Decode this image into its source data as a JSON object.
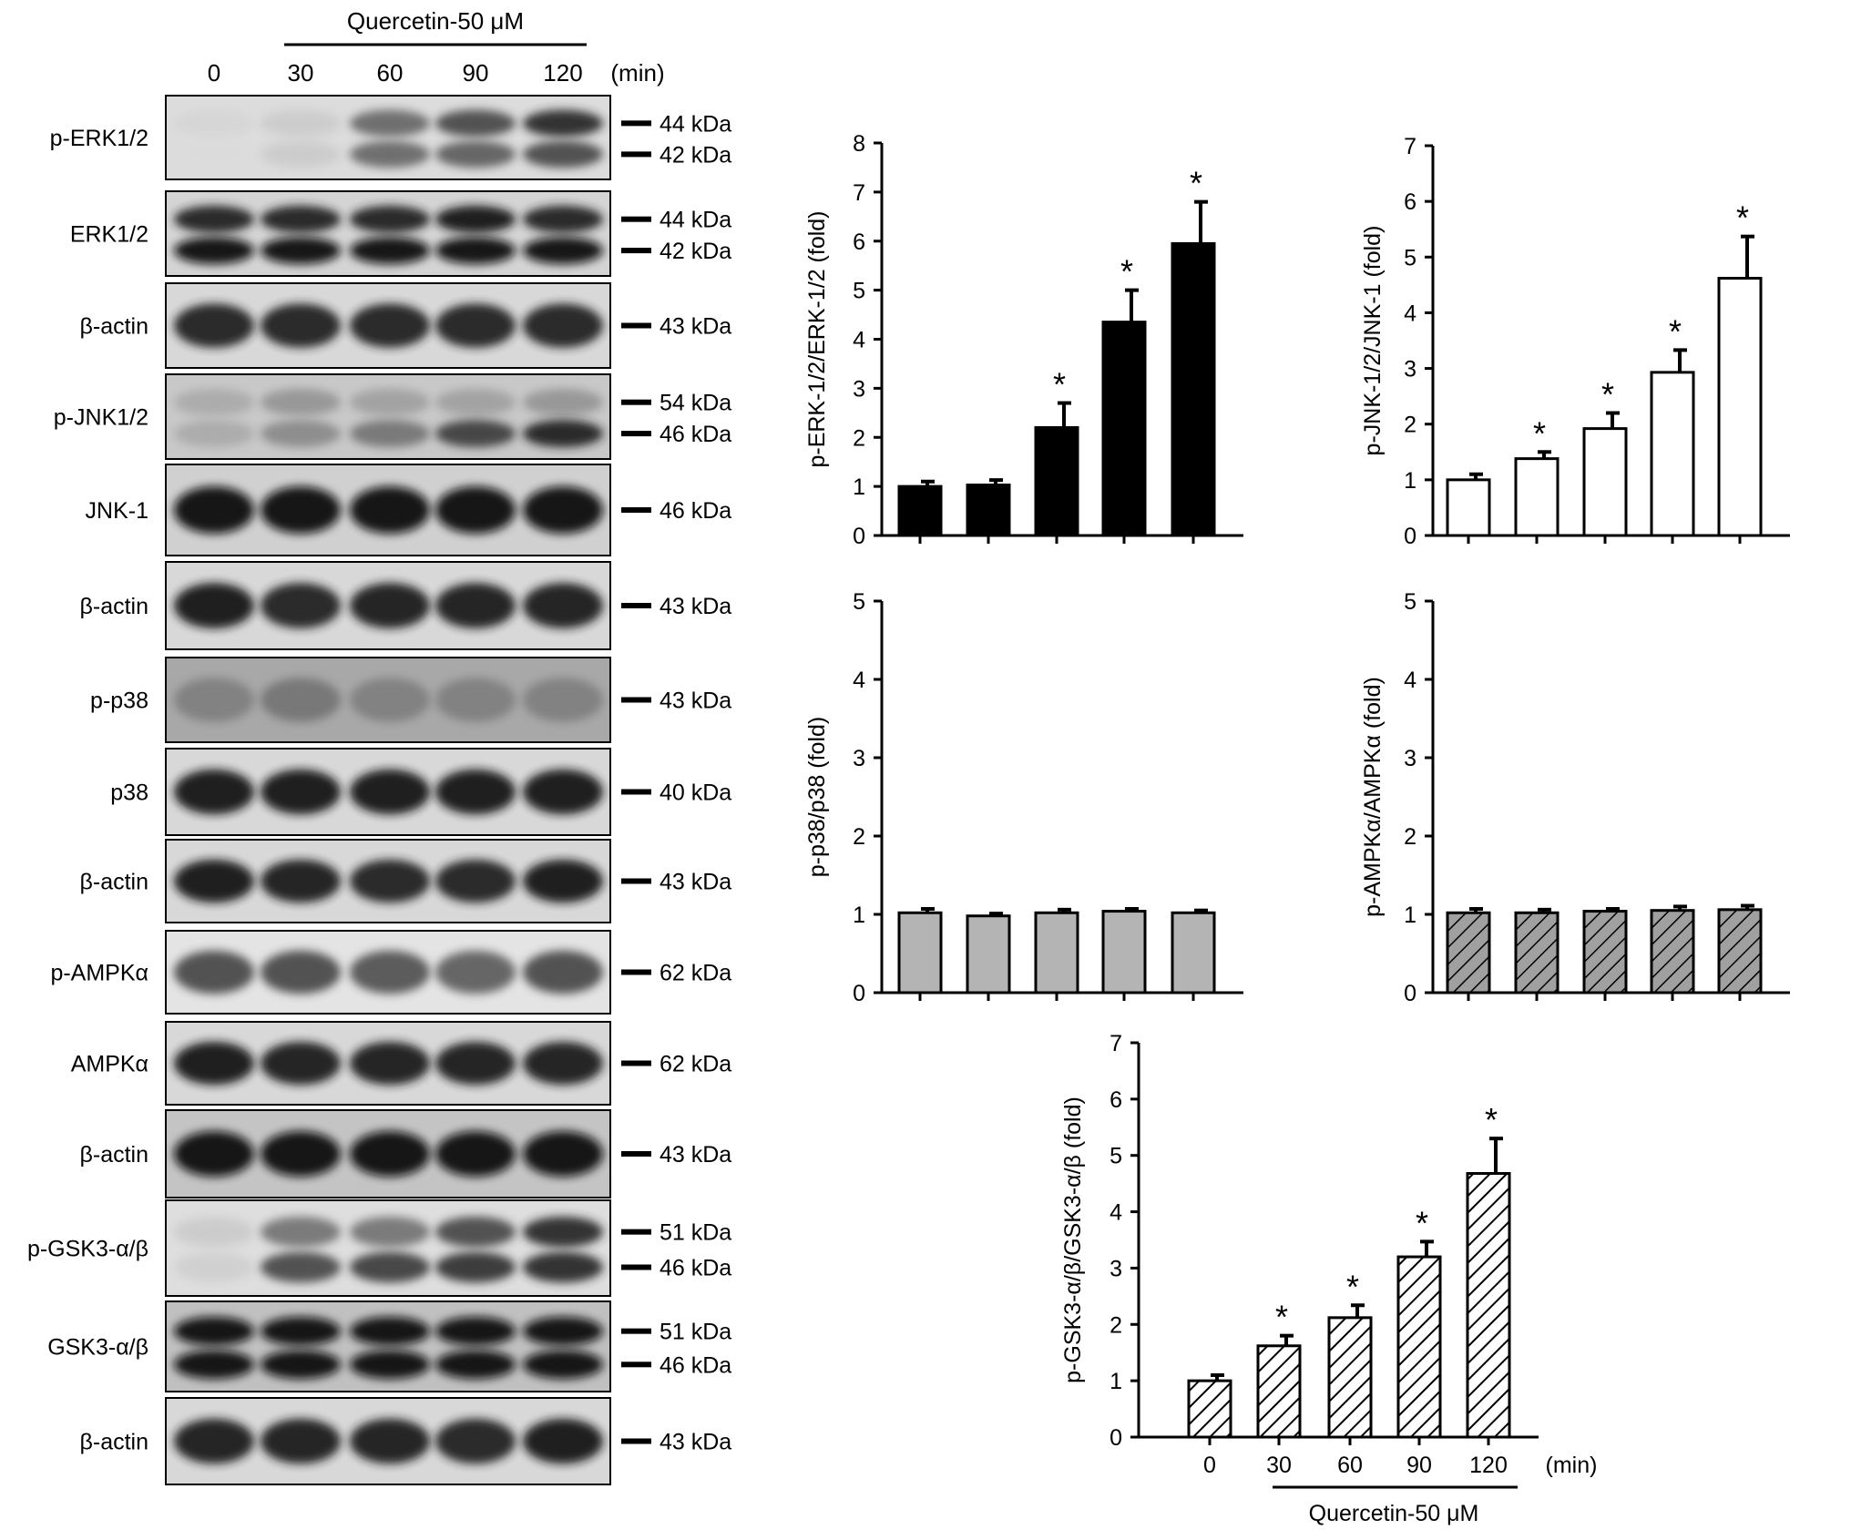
{
  "header": {
    "treatment": "Quercetin-50 μM",
    "times": [
      "0",
      "30",
      "60",
      "90",
      "120"
    ],
    "unit": "(min)"
  },
  "blots": [
    {
      "label": "p-ERK1/2",
      "markers": [
        "44 kDa",
        "42 kDa"
      ],
      "bands": [
        [
          0.05,
          0.1,
          0.55,
          0.7,
          0.85
        ],
        [
          0.03,
          0.1,
          0.55,
          0.6,
          0.7
        ]
      ],
      "bg": "#dcdcdc"
    },
    {
      "label": "ERK1/2",
      "markers": [
        "44 kDa",
        "42 kDa"
      ],
      "bands": [
        [
          0.9,
          0.9,
          0.9,
          0.95,
          0.9
        ],
        [
          1.0,
          1.0,
          1.0,
          1.0,
          1.0
        ]
      ],
      "bg": "#d4d4d4"
    },
    {
      "label": "β-actin",
      "markers": [
        "43 kDa"
      ],
      "bands": [
        [
          0.9,
          0.9,
          0.88,
          0.88,
          0.9
        ]
      ],
      "bg": "#d8d8d8"
    },
    {
      "label": "p-JNK1/2",
      "markers": [
        "54 kDa",
        "46 kDa"
      ],
      "bands": [
        [
          0.25,
          0.35,
          0.3,
          0.3,
          0.35
        ],
        [
          0.25,
          0.4,
          0.5,
          0.75,
          0.9
        ]
      ],
      "bg": "#c8c8c8"
    },
    {
      "label": "JNK-1",
      "markers": [
        "46 kDa"
      ],
      "bands": [
        [
          1.0,
          1.0,
          1.0,
          1.0,
          1.0
        ]
      ],
      "bg": "#d0d0d0"
    },
    {
      "label": "β-actin",
      "markers": [
        "43 kDa"
      ],
      "bands": [
        [
          0.95,
          0.9,
          0.92,
          0.92,
          0.92
        ]
      ],
      "bg": "#d8d8d8"
    },
    {
      "label": "p-p38",
      "markers": [
        "43 kDa"
      ],
      "bands": [
        [
          0.45,
          0.5,
          0.45,
          0.45,
          0.45
        ]
      ],
      "bg": "#a8a8a8"
    },
    {
      "label": "p38",
      "markers": [
        "40 kDa"
      ],
      "bands": [
        [
          0.95,
          0.95,
          0.95,
          0.95,
          0.95
        ]
      ],
      "bg": "#d8d8d8"
    },
    {
      "label": "β-actin",
      "markers": [
        "43 kDa"
      ],
      "bands": [
        [
          0.95,
          0.92,
          0.9,
          0.9,
          0.95
        ]
      ],
      "bg": "#d8d8d8"
    },
    {
      "label": "p-AMPKα",
      "markers": [
        "62 kDa"
      ],
      "bands": [
        [
          0.7,
          0.7,
          0.65,
          0.6,
          0.7
        ]
      ],
      "bg": "#e4e4e4"
    },
    {
      "label": "AMPKα",
      "markers": [
        "62 kDa"
      ],
      "bands": [
        [
          0.95,
          0.92,
          0.92,
          0.92,
          0.92
        ]
      ],
      "bg": "#d8d8d8"
    },
    {
      "label": "β-actin",
      "markers": [
        "43 kDa"
      ],
      "bands": [
        [
          1.0,
          1.0,
          1.0,
          1.0,
          1.0
        ]
      ],
      "bg": "#c4c4c4"
    },
    {
      "label": "p-GSK3-α/β",
      "markers": [
        "51 kDa",
        "46 kDa"
      ],
      "bands": [
        [
          0.1,
          0.5,
          0.5,
          0.7,
          0.85
        ],
        [
          0.08,
          0.7,
          0.75,
          0.8,
          0.85
        ]
      ],
      "bg": "#dedede"
    },
    {
      "label": "GSK3-α/β",
      "markers": [
        "51 kDa",
        "46 kDa"
      ],
      "bands": [
        [
          1.0,
          1.0,
          1.0,
          1.0,
          1.0
        ],
        [
          1.0,
          1.0,
          1.0,
          1.0,
          1.0
        ]
      ],
      "bg": "#c0c0c0"
    },
    {
      "label": "β-actin",
      "markers": [
        "43 kDa"
      ],
      "bands": [
        [
          0.92,
          0.92,
          0.92,
          0.9,
          0.95
        ]
      ],
      "bg": "#d8d8d8"
    }
  ],
  "chart_data": [
    {
      "type": "bar",
      "ylabel": "p-ERK-1/2/ERK-1/2 (fold)",
      "ylim": [
        0,
        8
      ],
      "yticks": [
        0,
        1,
        2,
        3,
        4,
        5,
        6,
        7,
        8
      ],
      "values": [
        1.0,
        1.03,
        2.2,
        4.35,
        5.95
      ],
      "errors": [
        0.1,
        0.1,
        0.5,
        0.65,
        0.85
      ],
      "significant": [
        false,
        false,
        true,
        true,
        true
      ],
      "fill": "solid-black"
    },
    {
      "type": "bar",
      "ylabel": "p-JNK-1/2/JNK-1 (fold)",
      "ylim": [
        0,
        7
      ],
      "yticks": [
        0,
        1,
        2,
        3,
        4,
        5,
        6,
        7
      ],
      "values": [
        1.0,
        1.38,
        1.92,
        2.93,
        4.62
      ],
      "errors": [
        0.1,
        0.12,
        0.28,
        0.4,
        0.75
      ],
      "significant": [
        false,
        true,
        true,
        true,
        true
      ],
      "fill": "white"
    },
    {
      "type": "bar",
      "ylabel": "p-p38/p38 (fold)",
      "ylim": [
        0,
        5
      ],
      "yticks": [
        0,
        1,
        2,
        3,
        4,
        5
      ],
      "values": [
        1.02,
        0.98,
        1.02,
        1.04,
        1.02
      ],
      "errors": [
        0.05,
        0.03,
        0.04,
        0.03,
        0.03
      ],
      "significant": [
        false,
        false,
        false,
        false,
        false
      ],
      "fill": "gray"
    },
    {
      "type": "bar",
      "ylabel": "p-AMPKα/AMPKα (fold)",
      "ylim": [
        0,
        5
      ],
      "yticks": [
        0,
        1,
        2,
        3,
        4,
        5
      ],
      "values": [
        1.02,
        1.02,
        1.04,
        1.05,
        1.06
      ],
      "errors": [
        0.05,
        0.04,
        0.03,
        0.05,
        0.05
      ],
      "significant": [
        false,
        false,
        false,
        false,
        false
      ],
      "fill": "hatched-gray"
    },
    {
      "type": "bar",
      "ylabel": "p-GSK3-α/β/GSK3-α/β (fold)",
      "ylim": [
        0,
        7
      ],
      "yticks": [
        0,
        1,
        2,
        3,
        4,
        5,
        6,
        7
      ],
      "categories": [
        "0",
        "30",
        "60",
        "90",
        "120"
      ],
      "xunit": "(min)",
      "xgroup_label": "Quercetin-50 μM",
      "values": [
        1.0,
        1.62,
        2.12,
        3.2,
        4.68
      ],
      "errors": [
        0.1,
        0.18,
        0.22,
        0.27,
        0.62
      ],
      "significant": [
        false,
        true,
        true,
        true,
        true
      ],
      "fill": "hatched-white"
    }
  ],
  "significance_mark": "*"
}
